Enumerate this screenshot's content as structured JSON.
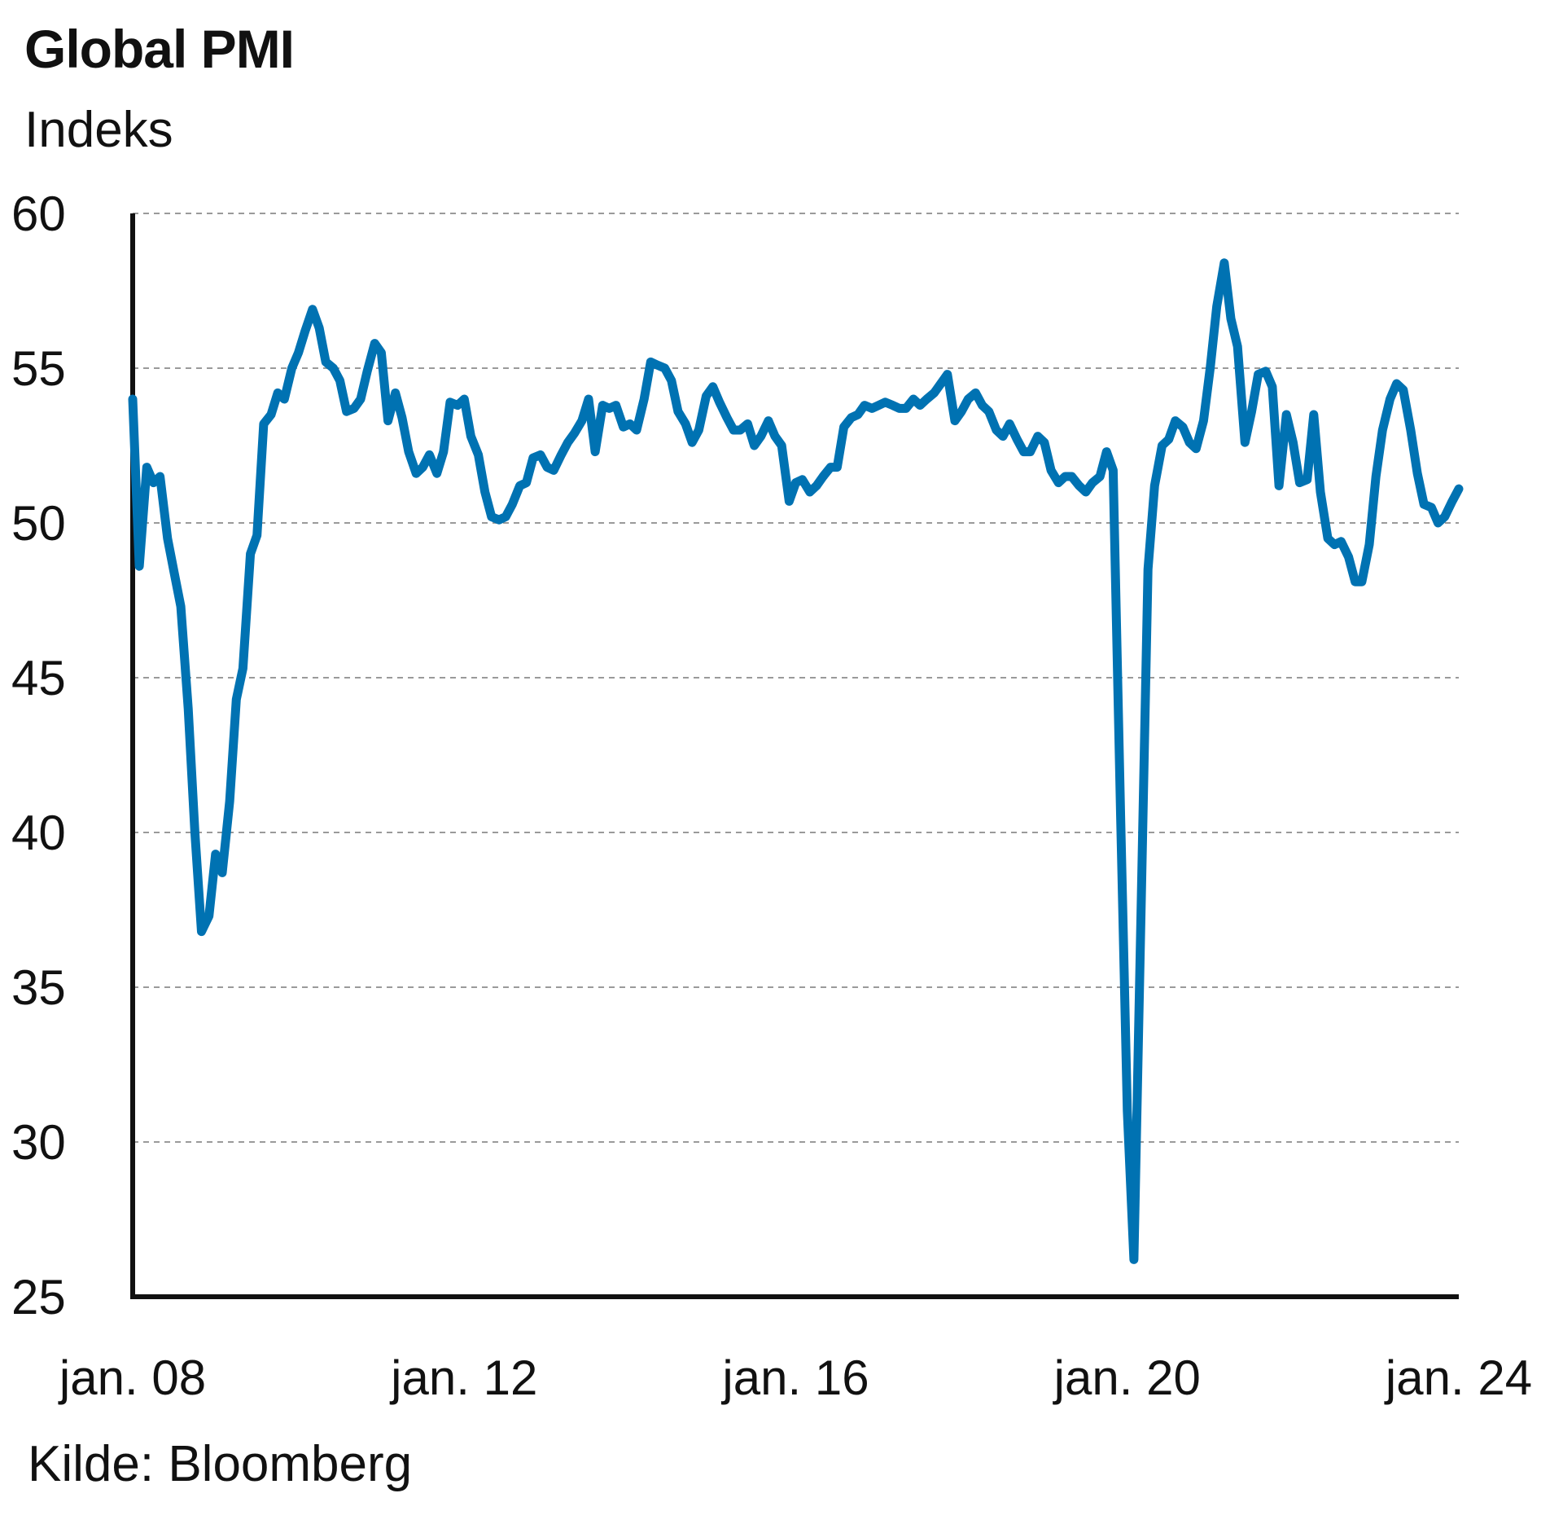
{
  "title": "Global PMI",
  "subtitle": "Indeks",
  "source": "Kilde: Bloomberg",
  "colors": {
    "line": "#0072b2",
    "axis": "#111111",
    "grid": "#9a9a9a"
  },
  "chart_data": {
    "type": "line",
    "title": "Global PMI",
    "ylabel": "Indeks",
    "ylim": [
      25,
      60
    ],
    "yticks": [
      25,
      30,
      35,
      40,
      45,
      50,
      55,
      60
    ],
    "xlim": [
      2008.0,
      2024.0
    ],
    "xticks": [
      {
        "x": 2008.0,
        "label": "jan. 08"
      },
      {
        "x": 2012.0,
        "label": "jan. 12"
      },
      {
        "x": 2016.0,
        "label": "jan. 16"
      },
      {
        "x": 2020.0,
        "label": "jan. 20"
      },
      {
        "x": 2024.0,
        "label": "jan. 24"
      }
    ],
    "grid": true,
    "legend": "none",
    "series": [
      {
        "color": "#0072b2",
        "points": [
          [
            2008.0,
            54.0
          ],
          [
            2008.08,
            48.6
          ],
          [
            2008.17,
            51.8
          ],
          [
            2008.25,
            51.3
          ],
          [
            2008.33,
            51.5
          ],
          [
            2008.42,
            49.5
          ],
          [
            2008.5,
            48.4
          ],
          [
            2008.58,
            47.3
          ],
          [
            2008.67,
            44.0
          ],
          [
            2008.75,
            40.0
          ],
          [
            2008.83,
            36.8
          ],
          [
            2008.92,
            37.3
          ],
          [
            2009.0,
            39.3
          ],
          [
            2009.08,
            38.7
          ],
          [
            2009.17,
            41.0
          ],
          [
            2009.25,
            44.3
          ],
          [
            2009.33,
            45.3
          ],
          [
            2009.42,
            49.0
          ],
          [
            2009.5,
            49.6
          ],
          [
            2009.58,
            53.2
          ],
          [
            2009.67,
            53.5
          ],
          [
            2009.75,
            54.2
          ],
          [
            2009.83,
            54.0
          ],
          [
            2009.92,
            55.0
          ],
          [
            2010.0,
            55.5
          ],
          [
            2010.08,
            56.2
          ],
          [
            2010.17,
            56.9
          ],
          [
            2010.25,
            56.3
          ],
          [
            2010.33,
            55.2
          ],
          [
            2010.42,
            55.0
          ],
          [
            2010.5,
            54.6
          ],
          [
            2010.58,
            53.6
          ],
          [
            2010.67,
            53.7
          ],
          [
            2010.75,
            54.0
          ],
          [
            2010.83,
            54.9
          ],
          [
            2010.92,
            55.8
          ],
          [
            2011.0,
            55.5
          ],
          [
            2011.08,
            53.3
          ],
          [
            2011.17,
            54.2
          ],
          [
            2011.25,
            53.4
          ],
          [
            2011.33,
            52.3
          ],
          [
            2011.42,
            51.6
          ],
          [
            2011.5,
            51.8
          ],
          [
            2011.58,
            52.2
          ],
          [
            2011.67,
            51.6
          ],
          [
            2011.75,
            52.3
          ],
          [
            2011.83,
            53.9
          ],
          [
            2011.92,
            53.8
          ],
          [
            2012.0,
            54.0
          ],
          [
            2012.08,
            52.8
          ],
          [
            2012.17,
            52.2
          ],
          [
            2012.25,
            51.0
          ],
          [
            2012.33,
            50.2
          ],
          [
            2012.42,
            50.1
          ],
          [
            2012.5,
            50.2
          ],
          [
            2012.58,
            50.6
          ],
          [
            2012.67,
            51.2
          ],
          [
            2012.75,
            51.3
          ],
          [
            2012.83,
            52.1
          ],
          [
            2012.92,
            52.2
          ],
          [
            2013.0,
            51.8
          ],
          [
            2013.08,
            51.7
          ],
          [
            2013.17,
            52.2
          ],
          [
            2013.25,
            52.6
          ],
          [
            2013.33,
            52.9
          ],
          [
            2013.42,
            53.3
          ],
          [
            2013.5,
            54.0
          ],
          [
            2013.58,
            52.3
          ],
          [
            2013.67,
            53.8
          ],
          [
            2013.75,
            53.7
          ],
          [
            2013.83,
            53.8
          ],
          [
            2013.92,
            53.1
          ],
          [
            2014.0,
            53.2
          ],
          [
            2014.08,
            53.0
          ],
          [
            2014.17,
            54.0
          ],
          [
            2014.25,
            55.2
          ],
          [
            2014.33,
            55.1
          ],
          [
            2014.42,
            55.0
          ],
          [
            2014.5,
            54.6
          ],
          [
            2014.58,
            53.6
          ],
          [
            2014.67,
            53.2
          ],
          [
            2014.75,
            52.6
          ],
          [
            2014.83,
            53.0
          ],
          [
            2014.92,
            54.1
          ],
          [
            2015.0,
            54.4
          ],
          [
            2015.08,
            53.9
          ],
          [
            2015.17,
            53.4
          ],
          [
            2015.25,
            53.0
          ],
          [
            2015.33,
            53.0
          ],
          [
            2015.42,
            53.2
          ],
          [
            2015.5,
            52.5
          ],
          [
            2015.58,
            52.8
          ],
          [
            2015.67,
            53.3
          ],
          [
            2015.75,
            52.8
          ],
          [
            2015.83,
            52.5
          ],
          [
            2015.92,
            50.7
          ],
          [
            2016.0,
            51.3
          ],
          [
            2016.08,
            51.4
          ],
          [
            2016.17,
            51.0
          ],
          [
            2016.25,
            51.2
          ],
          [
            2016.33,
            51.5
          ],
          [
            2016.42,
            51.8
          ],
          [
            2016.5,
            51.8
          ],
          [
            2016.58,
            53.1
          ],
          [
            2016.67,
            53.4
          ],
          [
            2016.75,
            53.5
          ],
          [
            2016.83,
            53.8
          ],
          [
            2016.92,
            53.7
          ],
          [
            2017.0,
            53.8
          ],
          [
            2017.08,
            53.9
          ],
          [
            2017.17,
            53.8
          ],
          [
            2017.25,
            53.7
          ],
          [
            2017.33,
            53.7
          ],
          [
            2017.42,
            54.0
          ],
          [
            2017.5,
            53.8
          ],
          [
            2017.58,
            54.0
          ],
          [
            2017.67,
            54.2
          ],
          [
            2017.75,
            54.5
          ],
          [
            2017.83,
            54.8
          ],
          [
            2017.92,
            53.3
          ],
          [
            2018.0,
            53.6
          ],
          [
            2018.08,
            54.0
          ],
          [
            2018.17,
            54.2
          ],
          [
            2018.25,
            53.8
          ],
          [
            2018.33,
            53.6
          ],
          [
            2018.42,
            53.0
          ],
          [
            2018.5,
            52.8
          ],
          [
            2018.58,
            53.2
          ],
          [
            2018.67,
            52.7
          ],
          [
            2018.75,
            52.3
          ],
          [
            2018.83,
            52.3
          ],
          [
            2018.92,
            52.8
          ],
          [
            2019.0,
            52.6
          ],
          [
            2019.08,
            51.7
          ],
          [
            2019.17,
            51.3
          ],
          [
            2019.25,
            51.5
          ],
          [
            2019.33,
            51.5
          ],
          [
            2019.42,
            51.2
          ],
          [
            2019.5,
            51.0
          ],
          [
            2019.58,
            51.3
          ],
          [
            2019.67,
            51.5
          ],
          [
            2019.75,
            52.3
          ],
          [
            2019.83,
            51.7
          ],
          [
            2019.92,
            40.5
          ],
          [
            2020.0,
            31.0
          ],
          [
            2020.08,
            26.2
          ],
          [
            2020.17,
            38.0
          ],
          [
            2020.25,
            48.5
          ],
          [
            2020.33,
            51.2
          ],
          [
            2020.42,
            52.5
          ],
          [
            2020.5,
            52.7
          ],
          [
            2020.58,
            53.3
          ],
          [
            2020.67,
            53.1
          ],
          [
            2020.75,
            52.6
          ],
          [
            2020.83,
            52.4
          ],
          [
            2020.92,
            53.3
          ],
          [
            2021.0,
            55.0
          ],
          [
            2021.08,
            57.0
          ],
          [
            2021.17,
            58.4
          ],
          [
            2021.25,
            56.6
          ],
          [
            2021.33,
            55.7
          ],
          [
            2021.42,
            52.6
          ],
          [
            2021.5,
            53.6
          ],
          [
            2021.58,
            54.8
          ],
          [
            2021.67,
            54.9
          ],
          [
            2021.75,
            54.4
          ],
          [
            2021.83,
            51.2
          ],
          [
            2021.92,
            53.5
          ],
          [
            2022.0,
            52.6
          ],
          [
            2022.08,
            51.3
          ],
          [
            2022.17,
            51.4
          ],
          [
            2022.25,
            53.5
          ],
          [
            2022.33,
            51.0
          ],
          [
            2022.42,
            49.5
          ],
          [
            2022.5,
            49.3
          ],
          [
            2022.58,
            49.4
          ],
          [
            2022.67,
            48.9
          ],
          [
            2022.75,
            48.1
          ],
          [
            2022.83,
            48.1
          ],
          [
            2022.92,
            49.3
          ],
          [
            2023.0,
            51.5
          ],
          [
            2023.08,
            53.0
          ],
          [
            2023.17,
            54.0
          ],
          [
            2023.25,
            54.5
          ],
          [
            2023.33,
            54.3
          ],
          [
            2023.42,
            53.0
          ],
          [
            2023.5,
            51.6
          ],
          [
            2023.58,
            50.6
          ],
          [
            2023.67,
            50.5
          ],
          [
            2023.75,
            50.0
          ],
          [
            2023.83,
            50.2
          ],
          [
            2023.92,
            50.7
          ],
          [
            2024.0,
            51.1
          ]
        ]
      }
    ]
  }
}
